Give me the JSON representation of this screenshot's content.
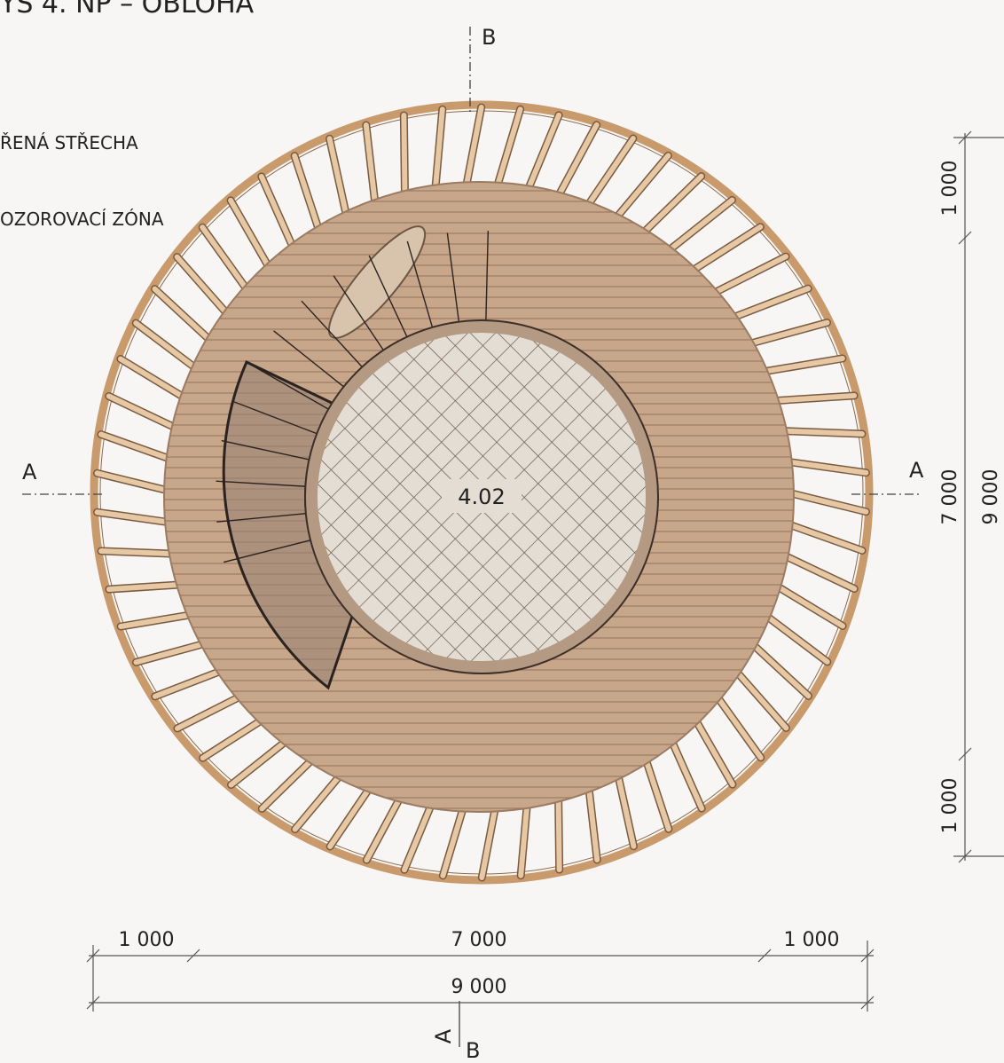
{
  "title": "YS 4. NP – OBLOHA",
  "legend": [
    "ŘENÁ STŘECHA",
    "OZOROVACÍ ZÓNA"
  ],
  "room": "4.02",
  "section_marks": {
    "top": "B",
    "left": "A",
    "right": "A",
    "bottom_a": "A",
    "bottom_b": "B"
  },
  "dimensions": {
    "bottom_parts": [
      "1 000",
      "7 000",
      "1 000"
    ],
    "bottom_total": "9 000",
    "right_parts": [
      "1 000",
      "7 000",
      "1 000"
    ],
    "right_total": "9 000"
  }
}
